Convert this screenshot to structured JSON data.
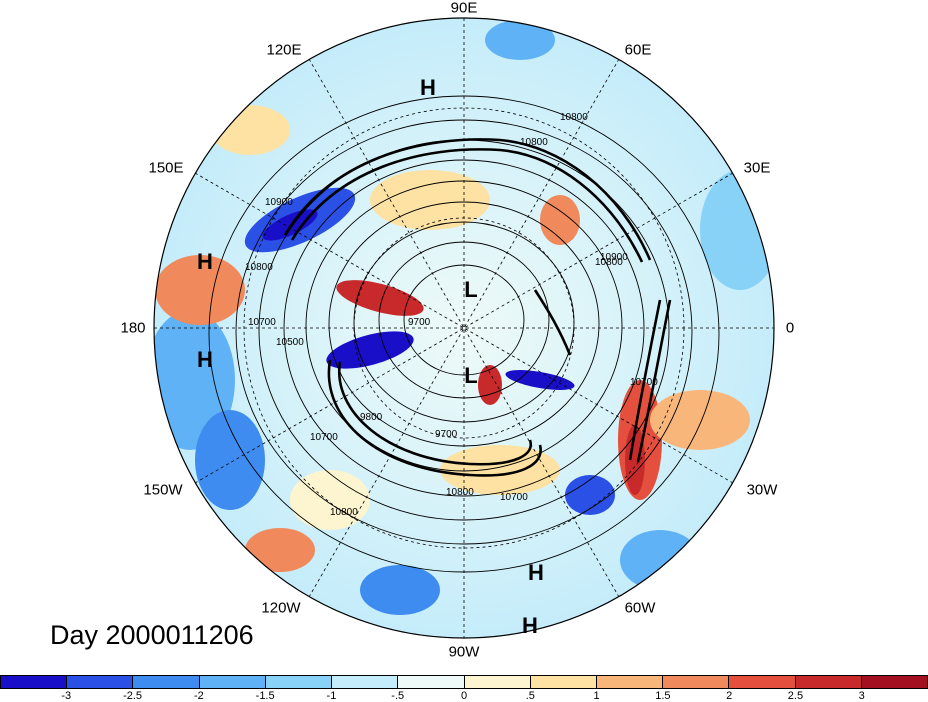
{
  "map": {
    "title_text": "Day 2000011206",
    "longitude_labels": [
      "90E",
      "60E",
      "30E",
      "0",
      "30W",
      "60W",
      "90W",
      "120W",
      "150W",
      "180",
      "150E",
      "120E"
    ],
    "pressure_centers": [
      "H",
      "H",
      "H",
      "H",
      "H",
      "L",
      "L"
    ],
    "contour_labels": [
      "10800",
      "10900",
      "10800",
      "10900",
      "10800",
      "10700",
      "10500",
      "9700",
      "9800",
      "10700",
      "10800",
      "10800",
      "10700",
      "9700",
      "10700",
      "10800"
    ],
    "colorbar": {
      "colors": [
        "#1a0fc8",
        "#2a50e6",
        "#3f8cf0",
        "#5fb2f5",
        "#88d2f8",
        "#c4ecfa",
        "#eefaf8",
        "#fcf5cf",
        "#fde2a4",
        "#f8b67a",
        "#f08a5c",
        "#e5503e",
        "#c82a2c",
        "#a3101f"
      ],
      "tick_labels": [
        "-3",
        "-2.5",
        "-2",
        "-1.5",
        "-1",
        "-.5",
        "0",
        ".5",
        "1",
        "1.5",
        "2",
        "2.5",
        "3"
      ]
    }
  }
}
